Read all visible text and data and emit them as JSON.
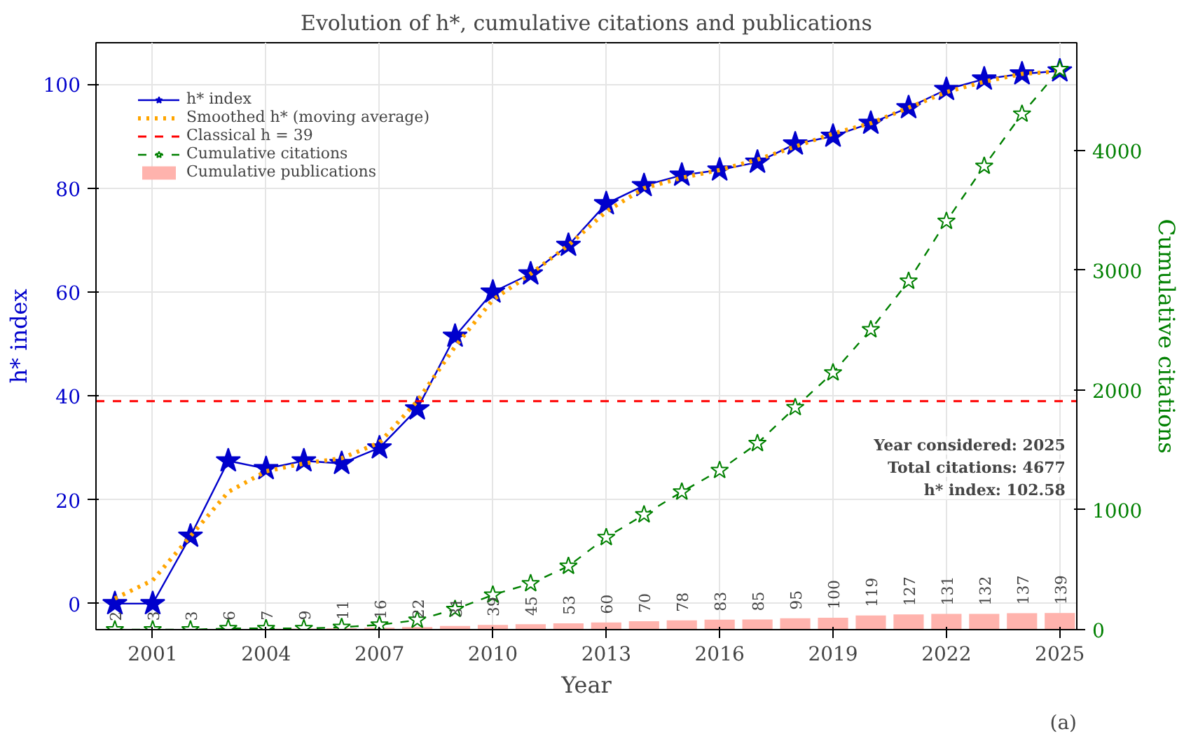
{
  "chart_data": {
    "type": "line",
    "title": "Evolution of h*, cumulative citations and publications",
    "xlabel": "Year",
    "ylabel": "h* index",
    "y2label": "Cumulative citations",
    "x": [
      2000,
      2001,
      2002,
      2003,
      2004,
      2005,
      2006,
      2007,
      2008,
      2009,
      2010,
      2011,
      2012,
      2013,
      2014,
      2015,
      2016,
      2017,
      2018,
      2019,
      2020,
      2021,
      2022,
      2023,
      2024,
      2025
    ],
    "series": [
      {
        "name": "Cumulative publications",
        "type": "bar",
        "axis": "y2",
        "color": "#ffb3ad",
        "data_labels": true,
        "values": [
          2,
          3,
          3,
          6,
          7,
          9,
          11,
          16,
          22,
          31,
          39,
          45,
          53,
          60,
          70,
          78,
          83,
          85,
          95,
          100,
          119,
          127,
          131,
          132,
          137,
          139
        ]
      },
      {
        "name": "h* index",
        "color": "#0000cc",
        "marker": "star",
        "line_style": "solid",
        "values": [
          0,
          0,
          13,
          27.5,
          26,
          27.5,
          27,
          30,
          37.5,
          51.5,
          60,
          63.5,
          69,
          77,
          80.5,
          82.5,
          83.5,
          85,
          88.5,
          90,
          92.5,
          95.5,
          99,
          101,
          102,
          102.58
        ]
      },
      {
        "name": "Smoothed h* (moving average)",
        "color": "#ffa500",
        "marker": "none",
        "line_style": "dotted",
        "values": [
          1,
          4.5,
          13,
          21.5,
          25.5,
          27,
          28,
          31,
          39,
          49.5,
          58.5,
          63.5,
          69,
          75.5,
          80,
          82,
          83.5,
          85.5,
          88,
          90.5,
          92.5,
          95.5,
          98.5,
          100.5,
          102,
          102.5
        ]
      },
      {
        "name": "Cumulative citations",
        "axis": "y2",
        "color": "#008000",
        "marker": "star",
        "line_style": "dashed",
        "values": [
          0,
          0,
          0,
          10,
          10,
          10,
          20,
          40,
          80,
          170,
          290,
          385,
          530,
          770,
          960,
          1150,
          1330,
          1555,
          1855,
          2145,
          2505,
          2910,
          3410,
          3870,
          4305,
          4677
        ]
      }
    ],
    "ref_lines": [
      {
        "axis": "y",
        "value": 39,
        "label": "Classical h = 39",
        "color": "#ff0000",
        "line_style": "dashed"
      }
    ],
    "xlim": [
      1999.5,
      2025.45
    ],
    "xticks": [
      2001,
      2004,
      2007,
      2010,
      2013,
      2016,
      2019,
      2022,
      2025
    ],
    "ylim": [
      -5,
      108
    ],
    "yticks": [
      0,
      20,
      40,
      60,
      80,
      100
    ],
    "y2lim": [
      0,
      4900
    ],
    "y2ticks": [
      0,
      1000,
      2000,
      3000,
      4000
    ],
    "grid": true,
    "legend": "top left",
    "annotations": [
      "Year considered: 2025",
      "Total citations: 4677",
      "h* index: 102.58",
      "(a)"
    ]
  }
}
